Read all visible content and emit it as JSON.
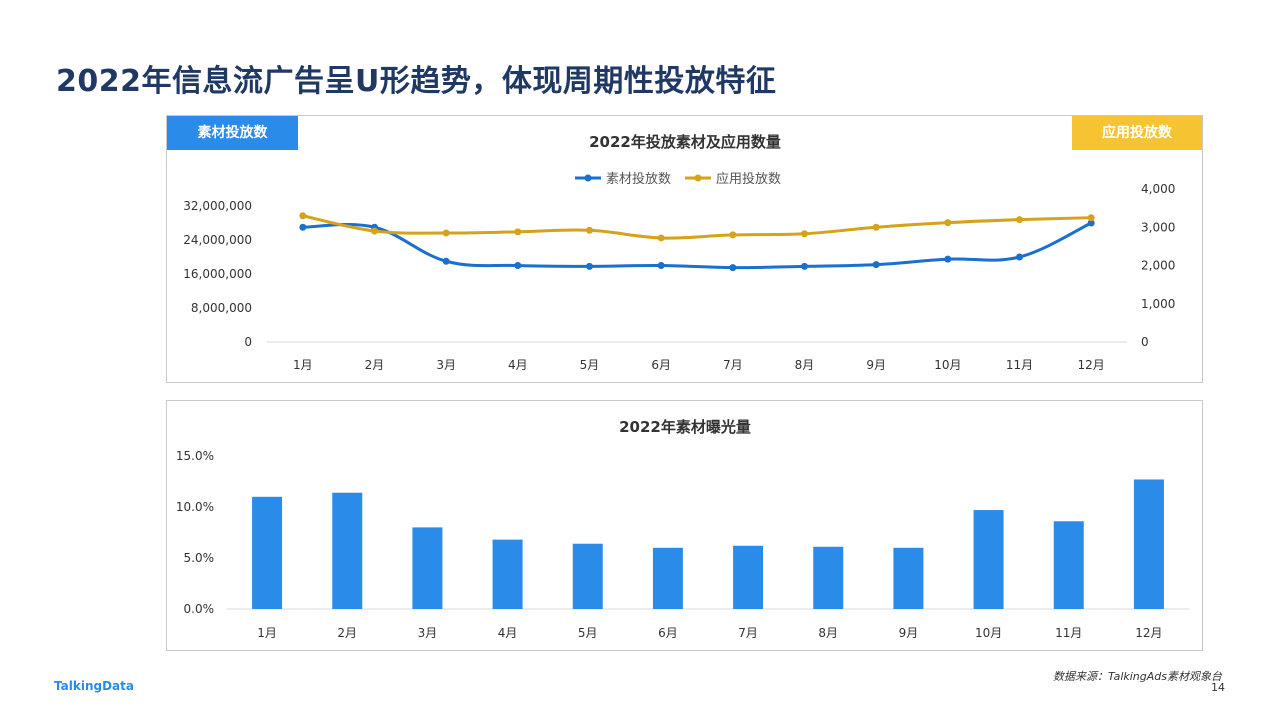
{
  "title": "2022年信息流广告呈U形趋势，体现周期性投放特征",
  "colors": {
    "blue": "#1a6fcf",
    "gold": "#d6a21a",
    "bar": "#2b8be8",
    "title": "#1f3864"
  },
  "tags": {
    "left": "素材投放数",
    "right": "应用投放数"
  },
  "chart_data": [
    {
      "type": "line",
      "title": "2022年投放素材及应用数量",
      "categories": [
        "1月",
        "2月",
        "3月",
        "4月",
        "5月",
        "6月",
        "7月",
        "8月",
        "9月",
        "10月",
        "11月",
        "12月"
      ],
      "legend_position": "top",
      "series": [
        {
          "name": "素材投放数",
          "axis": "left",
          "color": "#1a6fcf",
          "values": [
            27000000,
            27000000,
            19000000,
            18000000,
            17800000,
            18000000,
            17500000,
            17800000,
            18200000,
            19500000,
            20000000,
            28000000
          ]
        },
        {
          "name": "应用投放数",
          "axis": "right",
          "color": "#d6a21a",
          "values": [
            3300,
            2900,
            2850,
            2880,
            2920,
            2720,
            2800,
            2830,
            3000,
            3120,
            3200,
            3250
          ]
        }
      ],
      "y_left": {
        "ticks": [
          "0",
          "8,000,000",
          "16,000,000",
          "24,000,000",
          "32,000,000"
        ],
        "range": [
          0,
          32000000
        ]
      },
      "y_right": {
        "ticks": [
          "0",
          "1,000",
          "2,000",
          "3,000",
          "4,000"
        ],
        "range": [
          0,
          4000
        ]
      },
      "grid": false
    },
    {
      "type": "bar",
      "title": "2022年素材曝光量",
      "categories": [
        "1月",
        "2月",
        "3月",
        "4月",
        "5月",
        "6月",
        "7月",
        "8月",
        "9月",
        "10月",
        "11月",
        "12月"
      ],
      "values": [
        11.0,
        11.4,
        8.0,
        6.8,
        6.4,
        6.0,
        6.2,
        6.1,
        6.0,
        9.7,
        8.6,
        12.7
      ],
      "y_ticks": [
        "0.0%",
        "5.0%",
        "10.0%",
        "15.0%"
      ],
      "ylim": [
        0,
        15
      ],
      "color": "#2b8be8",
      "grid": false
    }
  ],
  "footer": {
    "source": "数据来源：TalkingAds素材观象台",
    "logo": "TalkingData",
    "page": "14"
  }
}
